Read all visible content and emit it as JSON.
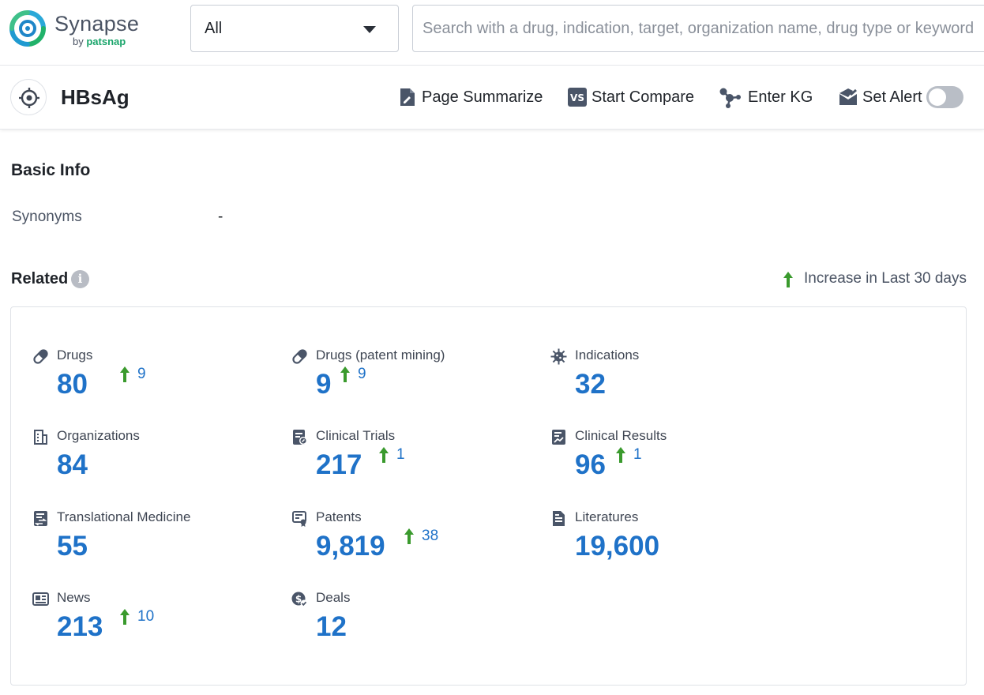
{
  "app": {
    "logo_name": "Synapse",
    "logo_by": "by",
    "logo_brand": "patsnap"
  },
  "search": {
    "scope_value": "All",
    "placeholder": "Search with a drug, indication, target, organization name, drug type or keyword"
  },
  "header": {
    "title": "HBsAg",
    "actions": {
      "summarize": "Page Summarize",
      "compare": "Start Compare",
      "kg": "Enter KG",
      "alert": "Set Alert"
    },
    "alert_enabled": false
  },
  "basic_info": {
    "heading": "Basic Info",
    "synonyms_label": "Synonyms",
    "synonyms_value": "-"
  },
  "related": {
    "heading": "Related",
    "legend": "Increase in Last 30 days",
    "items": [
      {
        "label": "Drugs",
        "value": "80",
        "increase": "9",
        "icon": "pill-icon"
      },
      {
        "label": "Drugs (patent mining)",
        "value": "9",
        "increase": "9",
        "icon": "pill-icon"
      },
      {
        "label": "Indications",
        "value": "32",
        "increase": "",
        "icon": "virus-icon"
      },
      {
        "label": "Organizations",
        "value": "84",
        "increase": "",
        "icon": "building-icon"
      },
      {
        "label": "Clinical Trials",
        "value": "217",
        "increase": "1",
        "icon": "clipboard-icon"
      },
      {
        "label": "Clinical Results",
        "value": "96",
        "increase": "1",
        "icon": "chart-doc-icon"
      },
      {
        "label": "Translational Medicine",
        "value": "55",
        "increase": "",
        "icon": "exchange-doc-icon"
      },
      {
        "label": "Patents",
        "value": "9,819",
        "increase": "38",
        "icon": "certificate-icon"
      },
      {
        "label": "Literatures",
        "value": "19,600",
        "increase": "",
        "icon": "document-icon"
      },
      {
        "label": "News",
        "value": "213",
        "increase": "10",
        "icon": "newspaper-icon"
      },
      {
        "label": "Deals",
        "value": "12",
        "increase": "",
        "icon": "deal-icon"
      }
    ]
  },
  "colors": {
    "accent_blue": "#1f72c8",
    "increase_green": "#3a9a2d",
    "icon_slate": "#4a5568"
  }
}
